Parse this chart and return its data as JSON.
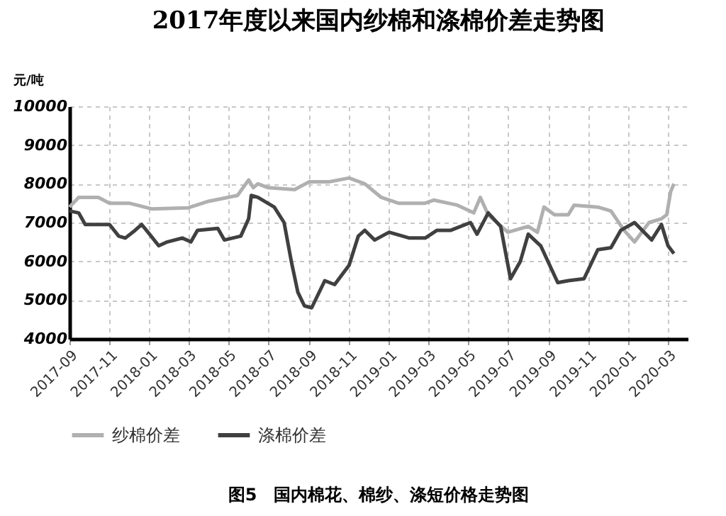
{
  "chart_data": {
    "type": "line",
    "title": "2017年度以来国内纱棉和涤棉价差走势图",
    "ylabel": "元/吨",
    "annotations": [
      "图5　国内棉花、棉纱、涤短价格走势图"
    ],
    "xlim": [
      "2017-09-01",
      "2020-03-31"
    ],
    "xticks": [
      "2017-09",
      "2017-11",
      "2018-01",
      "2018-03",
      "2018-05",
      "2018-07",
      "2018-09",
      "2018-11",
      "2019-01",
      "2019-03",
      "2019-05",
      "2019-07",
      "2019-09",
      "2019-11",
      "2020-01",
      "2020-03"
    ],
    "ylim": [
      4000,
      10000
    ],
    "yticks": [
      4000,
      5000,
      6000,
      7000,
      8000,
      9000,
      10000
    ],
    "grid": true,
    "legend": "bottom",
    "line_style": "solid",
    "marker": "none",
    "series": [
      {
        "name": "纱棉价差",
        "color": "#b0b0b0",
        "x": [
          "2017-09-01",
          "2017-09-15",
          "2017-10-15",
          "2017-11-01",
          "2017-12-01",
          "2018-01-05",
          "2018-03-01",
          "2018-04-01",
          "2018-05-15",
          "2018-06-01",
          "2018-06-08",
          "2018-06-15",
          "2018-07-01",
          "2018-08-10",
          "2018-09-01",
          "2018-10-01",
          "2018-11-01",
          "2018-11-25",
          "2018-12-20",
          "2019-01-15",
          "2019-02-25",
          "2019-03-10",
          "2019-04-15",
          "2019-05-10",
          "2019-05-20",
          "2019-06-01",
          "2019-07-01",
          "2019-08-01",
          "2019-08-15",
          "2019-08-25",
          "2019-09-10",
          "2019-10-01",
          "2019-10-10",
          "2019-11-15",
          "2019-12-05",
          "2019-12-25",
          "2020-01-10",
          "2020-02-01",
          "2020-02-20",
          "2020-02-28",
          "2020-03-05",
          "2020-03-10"
        ],
        "values": [
          7400,
          7650,
          7650,
          7500,
          7500,
          7350,
          7380,
          7550,
          7700,
          8100,
          7900,
          8000,
          7900,
          7850,
          8050,
          8050,
          8150,
          8000,
          7650,
          7500,
          7500,
          7580,
          7450,
          7250,
          7650,
          7200,
          6750,
          6900,
          6750,
          7400,
          7200,
          7200,
          7450,
          7400,
          7300,
          6800,
          6500,
          7000,
          7100,
          7200,
          7800,
          8000
        ]
      },
      {
        "name": "涤棉价差",
        "color": "#404040",
        "x": [
          "2017-09-01",
          "2017-09-15",
          "2017-09-25",
          "2017-11-01",
          "2017-11-15",
          "2017-11-25",
          "2017-12-10",
          "2017-12-20",
          "2018-01-01",
          "2018-01-15",
          "2018-01-28",
          "2018-02-20",
          "2018-03-05",
          "2018-03-15",
          "2018-04-15",
          "2018-04-25",
          "2018-05-20",
          "2018-06-01",
          "2018-06-05",
          "2018-06-15",
          "2018-07-10",
          "2018-07-25",
          "2018-08-05",
          "2018-08-15",
          "2018-08-25",
          "2018-09-05",
          "2018-09-25",
          "2018-10-10",
          "2018-11-01",
          "2018-11-15",
          "2018-11-25",
          "2018-12-10",
          "2019-01-01",
          "2019-02-01",
          "2019-02-25",
          "2019-03-15",
          "2019-04-05",
          "2019-05-05",
          "2019-05-15",
          "2019-06-01",
          "2019-06-20",
          "2019-07-05",
          "2019-07-20",
          "2019-08-01",
          "2019-08-20",
          "2019-09-15",
          "2019-10-01",
          "2019-10-25",
          "2019-11-15",
          "2019-12-05",
          "2019-12-20",
          "2020-01-10",
          "2020-02-05",
          "2020-02-20",
          "2020-03-01",
          "2020-03-10"
        ],
        "values": [
          7300,
          7250,
          6950,
          6950,
          6650,
          6600,
          6800,
          6950,
          6700,
          6400,
          6500,
          6600,
          6500,
          6800,
          6850,
          6550,
          6650,
          7100,
          7700,
          7650,
          7400,
          7000,
          6000,
          5200,
          4850,
          4800,
          5500,
          5400,
          5900,
          6650,
          6800,
          6550,
          6750,
          6600,
          6600,
          6800,
          6800,
          7000,
          6700,
          7250,
          6900,
          5550,
          6000,
          6700,
          6400,
          5450,
          5500,
          5550,
          6300,
          6350,
          6800,
          7000,
          6550,
          6950,
          6400,
          6200
        ]
      }
    ]
  }
}
